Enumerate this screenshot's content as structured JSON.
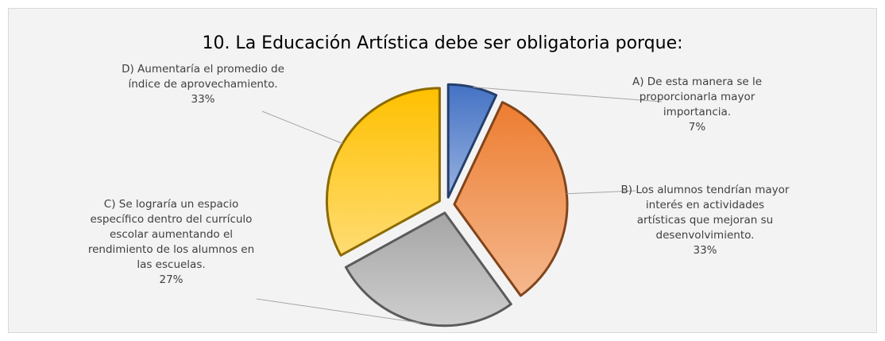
{
  "chart_data": {
    "type": "pie",
    "title": "10. La Educación Artística debe ser obligatoria porque:",
    "categories": [
      "A) De esta manera se le proporcionarla mayor importancia.",
      "B) Los alumnos tendrían mayor interés en actividades artísticas que mejoran su desenvolvimiento.",
      "C) Se lograría un espacio específico dentro del currículo escolar aumentando el rendimiento de los alumnos en las escuelas.",
      "D) Aumentaría el promedio de índice de aprovechamiento."
    ],
    "values": [
      7,
      33,
      27,
      33
    ],
    "value_labels": [
      "7%",
      "33%",
      "27%",
      "33%"
    ],
    "colors": [
      "#4472c4",
      "#ed7d31",
      "#a5a5a5",
      "#ffc000"
    ]
  }
}
